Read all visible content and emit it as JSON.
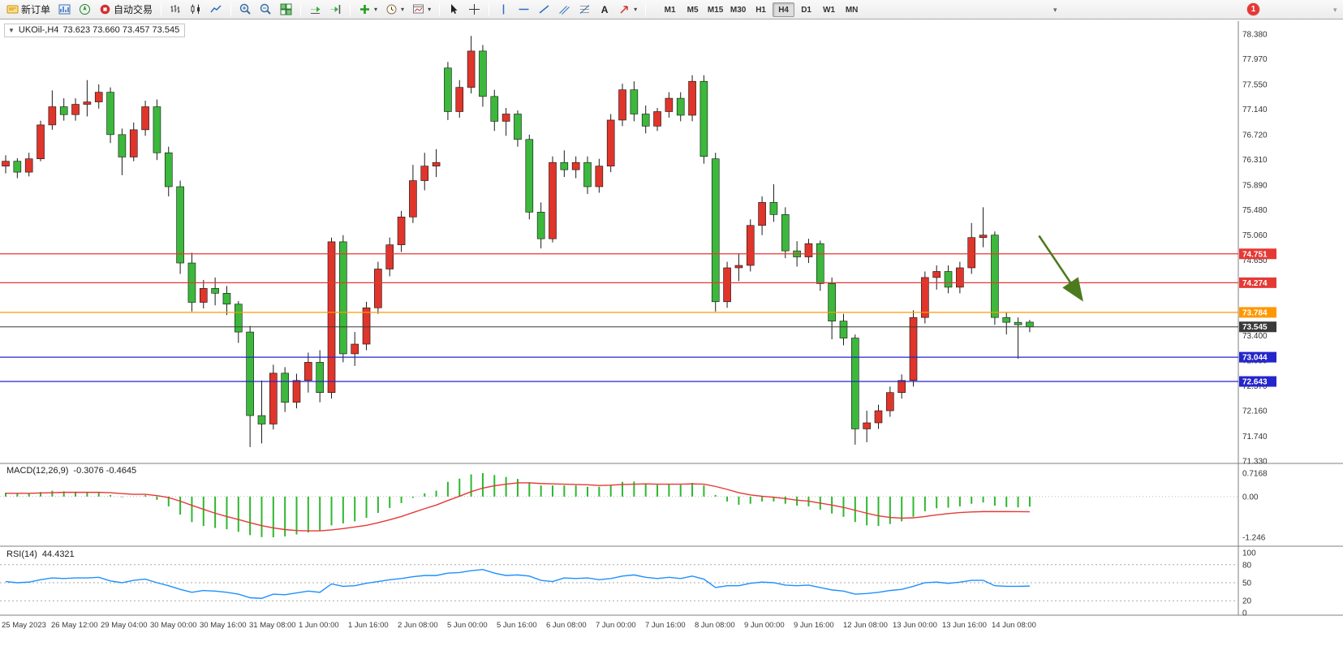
{
  "toolbar": {
    "new_order_label": "新订单",
    "auto_trading_label": "自动交易",
    "text_tool_label": "A",
    "timeframes": [
      "M1",
      "M5",
      "M15",
      "M30",
      "H1",
      "H4",
      "D1",
      "W1",
      "MN"
    ],
    "active_timeframe": "H4",
    "notification_badge": "1",
    "more_chevron": "▾",
    "window_chevron": "▾"
  },
  "chart_title": {
    "collapse_icon": "▼",
    "symbol": "UKOil-,H4",
    "ohlc": "73.623 73.660 73.457 73.545"
  },
  "chart_data": {
    "type": "candlestick",
    "symbol": "UKOil-",
    "timeframe": "H4",
    "current": {
      "open": 73.623,
      "high": 73.66,
      "low": 73.457,
      "close": 73.545
    },
    "price_range": {
      "max": 78.38,
      "min": 71.33
    },
    "price_axis_ticks": [
      "78.380",
      "77.970",
      "77.550",
      "77.140",
      "76.720",
      "76.310",
      "75.890",
      "75.480",
      "75.060",
      "74.650",
      "74.240",
      "73.820",
      "73.400",
      "72.990",
      "72.570",
      "72.160",
      "71.740",
      "71.330"
    ],
    "up_color": "#e0352b",
    "down_color": "#3cb83c",
    "wick_color": "#1b1b1b",
    "candles": [
      [
        76.2,
        76.38,
        76.08,
        76.28
      ],
      [
        76.28,
        76.33,
        76.0,
        76.1
      ],
      [
        76.1,
        76.42,
        76.03,
        76.32
      ],
      [
        76.32,
        76.95,
        76.28,
        76.88
      ],
      [
        76.88,
        77.45,
        76.8,
        77.18
      ],
      [
        77.18,
        77.32,
        76.95,
        77.05
      ],
      [
        77.05,
        77.32,
        76.95,
        77.22
      ],
      [
        77.22,
        77.62,
        77.02,
        77.26
      ],
      [
        77.26,
        77.55,
        77.15,
        77.42
      ],
      [
        77.42,
        77.5,
        76.58,
        76.72
      ],
      [
        76.72,
        76.82,
        76.05,
        76.35
      ],
      [
        76.35,
        76.92,
        76.28,
        76.8
      ],
      [
        76.8,
        77.28,
        76.7,
        77.18
      ],
      [
        77.18,
        77.3,
        76.3,
        76.42
      ],
      [
        76.42,
        76.52,
        75.7,
        75.86
      ],
      [
        75.86,
        75.96,
        74.42,
        74.6
      ],
      [
        74.6,
        74.77,
        73.8,
        73.95
      ],
      [
        73.95,
        74.32,
        73.85,
        74.18
      ],
      [
        74.18,
        74.36,
        73.9,
        74.1
      ],
      [
        74.1,
        74.22,
        73.74,
        73.92
      ],
      [
        73.92,
        73.97,
        73.28,
        73.46
      ],
      [
        73.46,
        73.56,
        71.56,
        72.08
      ],
      [
        72.08,
        72.66,
        71.62,
        71.94
      ],
      [
        71.94,
        72.92,
        71.85,
        72.78
      ],
      [
        72.78,
        72.88,
        72.14,
        72.3
      ],
      [
        72.3,
        72.77,
        72.2,
        72.66
      ],
      [
        72.66,
        73.12,
        72.46,
        72.96
      ],
      [
        72.96,
        73.16,
        72.3,
        72.46
      ],
      [
        72.46,
        75.02,
        72.36,
        74.95
      ],
      [
        74.95,
        75.06,
        72.96,
        73.1
      ],
      [
        73.1,
        73.46,
        72.9,
        73.26
      ],
      [
        73.26,
        73.96,
        73.16,
        73.86
      ],
      [
        73.86,
        74.62,
        73.76,
        74.5
      ],
      [
        74.5,
        75.02,
        74.38,
        74.9
      ],
      [
        74.9,
        75.46,
        74.78,
        75.36
      ],
      [
        75.36,
        76.22,
        75.26,
        75.96
      ],
      [
        75.96,
        76.42,
        75.8,
        76.2
      ],
      [
        76.2,
        76.48,
        76.02,
        76.26
      ],
      [
        77.82,
        77.92,
        76.96,
        77.1
      ],
      [
        77.1,
        77.62,
        77.0,
        77.5
      ],
      [
        77.5,
        78.35,
        77.4,
        78.1
      ],
      [
        78.1,
        78.2,
        77.18,
        77.35
      ],
      [
        77.35,
        77.46,
        76.78,
        76.94
      ],
      [
        76.94,
        77.16,
        76.7,
        77.06
      ],
      [
        77.06,
        77.12,
        76.52,
        76.64
      ],
      [
        76.64,
        76.72,
        75.32,
        75.44
      ],
      [
        75.44,
        75.6,
        74.84,
        75.0
      ],
      [
        75.0,
        76.36,
        74.94,
        76.26
      ],
      [
        76.26,
        76.46,
        76.02,
        76.14
      ],
      [
        76.14,
        76.36,
        76.0,
        76.26
      ],
      [
        76.26,
        76.36,
        75.74,
        75.86
      ],
      [
        75.86,
        76.32,
        75.76,
        76.2
      ],
      [
        76.2,
        77.06,
        76.1,
        76.96
      ],
      [
        76.96,
        77.56,
        76.86,
        77.46
      ],
      [
        77.46,
        77.6,
        76.94,
        77.06
      ],
      [
        77.06,
        77.2,
        76.74,
        76.86
      ],
      [
        76.86,
        77.16,
        76.78,
        77.1
      ],
      [
        77.1,
        77.42,
        77.0,
        77.32
      ],
      [
        77.32,
        77.42,
        76.94,
        77.04
      ],
      [
        77.04,
        77.7,
        76.94,
        77.6
      ],
      [
        77.6,
        77.7,
        76.24,
        76.36
      ],
      [
        76.32,
        76.42,
        73.8,
        73.96
      ],
      [
        73.96,
        74.62,
        73.86,
        74.52
      ],
      [
        74.52,
        74.76,
        74.3,
        74.56
      ],
      [
        74.56,
        75.32,
        74.46,
        75.22
      ],
      [
        75.22,
        75.7,
        75.06,
        75.6
      ],
      [
        75.6,
        75.9,
        75.28,
        75.4
      ],
      [
        75.4,
        75.52,
        74.68,
        74.8
      ],
      [
        74.8,
        74.96,
        74.54,
        74.7
      ],
      [
        74.7,
        75.0,
        74.6,
        74.92
      ],
      [
        74.92,
        74.97,
        74.14,
        74.26
      ],
      [
        74.26,
        74.36,
        73.34,
        73.64
      ],
      [
        73.64,
        73.76,
        73.24,
        73.36
      ],
      [
        73.36,
        73.42,
        71.6,
        71.86
      ],
      [
        71.86,
        72.16,
        71.64,
        71.96
      ],
      [
        71.96,
        72.26,
        71.86,
        72.16
      ],
      [
        72.16,
        72.56,
        72.06,
        72.46
      ],
      [
        72.46,
        72.76,
        72.36,
        72.66
      ],
      [
        72.66,
        73.82,
        72.56,
        73.7
      ],
      [
        73.7,
        74.46,
        73.6,
        74.36
      ],
      [
        74.36,
        74.56,
        74.16,
        74.46
      ],
      [
        74.46,
        74.56,
        74.1,
        74.2
      ],
      [
        74.2,
        74.62,
        74.1,
        74.52
      ],
      [
        74.52,
        75.26,
        74.42,
        75.02
      ],
      [
        75.02,
        75.52,
        74.86,
        75.06
      ],
      [
        75.06,
        75.12,
        73.58,
        73.7
      ],
      [
        73.7,
        73.78,
        73.42,
        73.62
      ],
      [
        73.62,
        73.7,
        73.02,
        73.58
      ],
      [
        73.623,
        73.66,
        73.457,
        73.545
      ]
    ],
    "hlines": [
      {
        "price": 74.751,
        "label": "74.751",
        "color": "#e53935"
      },
      {
        "price": 74.274,
        "label": "74.274",
        "color": "#e53935"
      },
      {
        "price": 73.784,
        "label": "73.784",
        "color": "#ff9800"
      },
      {
        "price": 73.545,
        "label": "73.545",
        "color": "#3a3a3a",
        "current": true
      },
      {
        "price": 73.044,
        "label": "73.044",
        "color": "#2525cc"
      },
      {
        "price": 72.643,
        "label": "72.643",
        "color": "#2525cc"
      }
    ],
    "arrow": {
      "from_bar": 88.8,
      "from_price": 75.05,
      "to_bar": 92.4,
      "to_price": 74.02,
      "color": "#4c7a1e"
    },
    "time_labels": [
      "25 May 2023",
      "26 May 12:00",
      "29 May 04:00",
      "30 May 00:00",
      "30 May 16:00",
      "31 May 08:00",
      "1 Jun 00:00",
      "1 Jun 16:00",
      "2 Jun 08:00",
      "5 Jun 00:00",
      "5 Jun 16:00",
      "6 Jun 08:00",
      "7 Jun 00:00",
      "7 Jun 16:00",
      "8 Jun 08:00",
      "9 Jun 00:00",
      "9 Jun 16:00",
      "12 Jun 08:00",
      "13 Jun 00:00",
      "13 Jun 16:00",
      "14 Jun 08:00"
    ],
    "macd": {
      "label": "MACD(12,26,9)",
      "values_text": "-0.3076 -0.4645",
      "axis_ticks": [
        "0.7168",
        "0.00",
        "-1.246"
      ],
      "range": {
        "max": 0.7168,
        "min": -1.246
      },
      "histogram_color": "#2eb82e",
      "signal_color": "#e53935",
      "main": [
        0.12,
        0.1,
        0.1,
        0.14,
        0.18,
        0.16,
        0.15,
        0.14,
        0.13,
        0.05,
        -0.02,
        0.0,
        0.04,
        -0.1,
        -0.3,
        -0.55,
        -0.78,
        -0.9,
        -0.96,
        -1.0,
        -1.08,
        -1.18,
        -1.24,
        -1.246,
        -1.22,
        -1.16,
        -1.1,
        -1.05,
        -0.88,
        -0.82,
        -0.76,
        -0.65,
        -0.5,
        -0.35,
        -0.2,
        -0.04,
        0.1,
        0.18,
        0.45,
        0.55,
        0.68,
        0.7168,
        0.66,
        0.6,
        0.54,
        0.44,
        0.34,
        0.34,
        0.34,
        0.34,
        0.3,
        0.3,
        0.36,
        0.45,
        0.46,
        0.4,
        0.36,
        0.38,
        0.36,
        0.42,
        0.34,
        0.05,
        -0.15,
        -0.25,
        -0.22,
        -0.15,
        -0.15,
        -0.22,
        -0.28,
        -0.3,
        -0.4,
        -0.52,
        -0.62,
        -0.78,
        -0.88,
        -0.9,
        -0.84,
        -0.76,
        -0.62,
        -0.45,
        -0.36,
        -0.34,
        -0.3,
        -0.22,
        -0.18,
        -0.28,
        -0.32,
        -0.33,
        -0.3076
      ],
      "signal": [
        0.1,
        0.1,
        0.1,
        0.11,
        0.12,
        0.13,
        0.13,
        0.13,
        0.13,
        0.12,
        0.09,
        0.07,
        0.07,
        0.03,
        -0.03,
        -0.14,
        -0.27,
        -0.39,
        -0.51,
        -0.61,
        -0.7,
        -0.8,
        -0.89,
        -0.96,
        -1.01,
        -1.04,
        -1.05,
        -1.05,
        -1.02,
        -0.98,
        -0.93,
        -0.88,
        -0.8,
        -0.71,
        -0.61,
        -0.49,
        -0.37,
        -0.26,
        -0.12,
        0.01,
        0.15,
        0.26,
        0.33,
        0.38,
        0.42,
        0.42,
        0.4,
        0.39,
        0.38,
        0.37,
        0.36,
        0.34,
        0.35,
        0.37,
        0.38,
        0.39,
        0.38,
        0.38,
        0.38,
        0.39,
        0.38,
        0.31,
        0.22,
        0.12,
        0.05,
        0.01,
        -0.02,
        -0.06,
        -0.11,
        -0.14,
        -0.2,
        -0.26,
        -0.33,
        -0.42,
        -0.51,
        -0.59,
        -0.64,
        -0.66,
        -0.65,
        -0.61,
        -0.56,
        -0.52,
        -0.49,
        -0.47,
        -0.46,
        -0.46,
        -0.46,
        -0.463,
        -0.4645
      ]
    },
    "rsi": {
      "label": "RSI(14)",
      "value_text": "44.4321",
      "axis_ticks": [
        "100",
        "80",
        "50",
        "20",
        "0"
      ],
      "levels": [
        80,
        50,
        20
      ],
      "line_color": "#1e90ff",
      "values": [
        52,
        50,
        51,
        55,
        58,
        57,
        58,
        58,
        59,
        53,
        50,
        54,
        56,
        50,
        45,
        39,
        34,
        37,
        36,
        34,
        31,
        25,
        24,
        31,
        30,
        33,
        36,
        34,
        48,
        44,
        45,
        49,
        52,
        55,
        57,
        60,
        62,
        62,
        66,
        67,
        70,
        72,
        66,
        62,
        63,
        61,
        54,
        52,
        58,
        57,
        58,
        55,
        57,
        61,
        63,
        59,
        57,
        59,
        57,
        61,
        56,
        42,
        45,
        45,
        49,
        51,
        50,
        46,
        45,
        46,
        42,
        38,
        36,
        31,
        32,
        34,
        37,
        39,
        44,
        50,
        51,
        49,
        51,
        54,
        54,
        45,
        44,
        44,
        44.43
      ]
    }
  }
}
